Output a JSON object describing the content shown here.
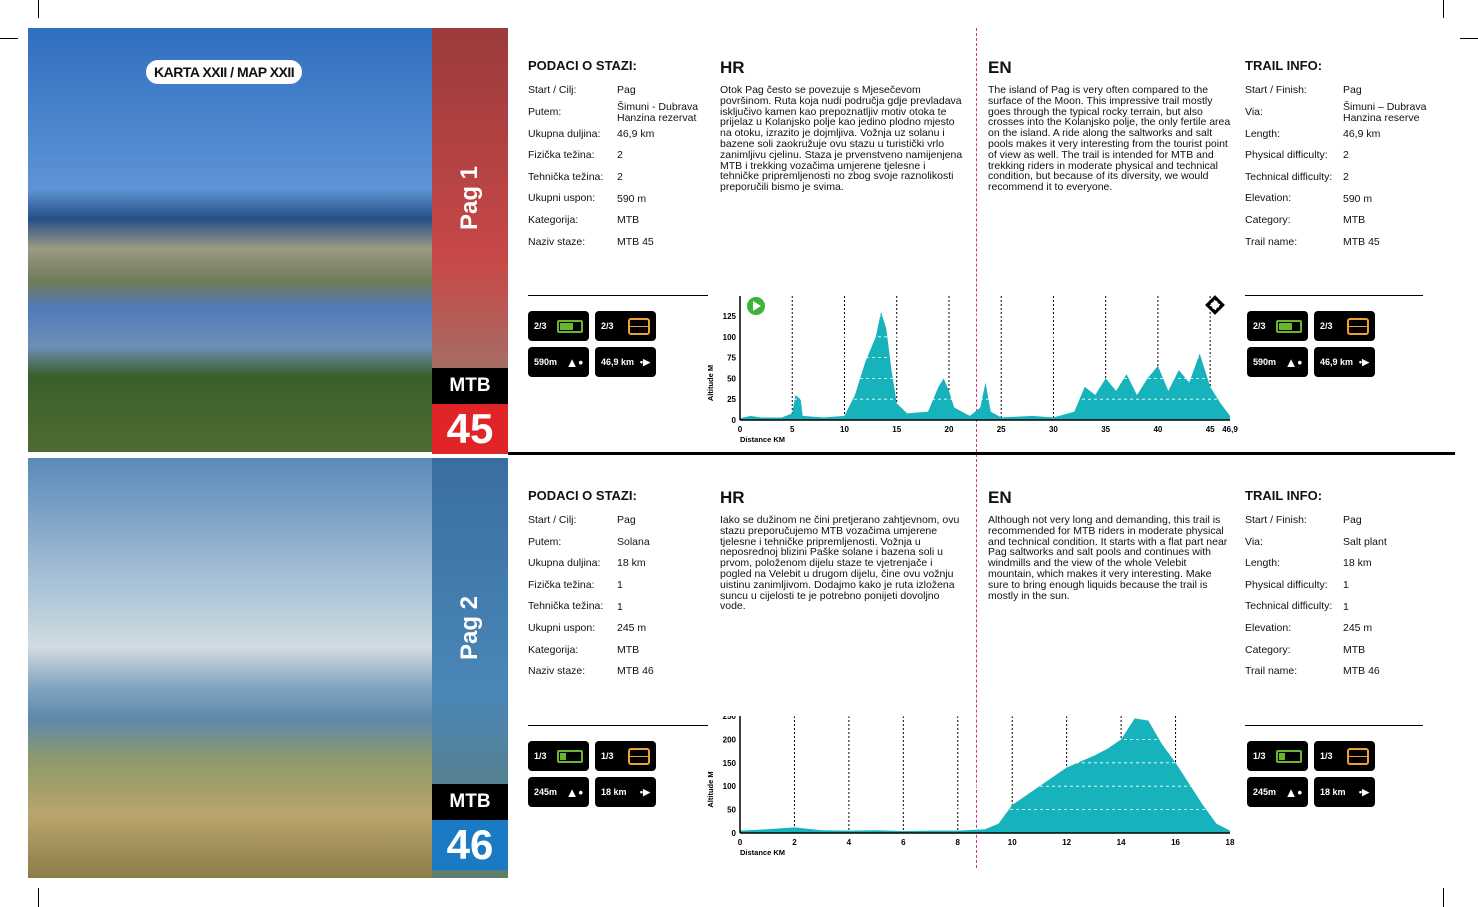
{
  "map_label": "KARTA XXII / MAP XXII",
  "routes": [
    {
      "pag": "Pag 1",
      "type": "MTB",
      "number": "45",
      "num_color": "#e02428",
      "hr_info_title": "PODACI O STAZI:",
      "hr_title": "HR",
      "en_title": "EN",
      "en_info_title": "TRAIL INFO:",
      "hr_info": [
        [
          "Start / Cilj:",
          "Pag"
        ],
        [
          "Putem:",
          "Šimuni - Dubrava Hanzina rezervat"
        ],
        [
          "Ukupna duljina:",
          "46,9 km"
        ],
        [
          "Fizička težina:",
          "2"
        ],
        [
          "Tehnička težina:",
          "2"
        ],
        [
          "Ukupni uspon:",
          "590 m"
        ],
        [
          "Kategorija:",
          "MTB"
        ],
        [
          "Naziv staze:",
          "MTB 45"
        ]
      ],
      "en_info": [
        [
          "Start / Finish:",
          "Pag"
        ],
        [
          "Via:",
          "Šimuni – Dubrava Hanzina reserve"
        ],
        [
          "Length:",
          "46,9 km"
        ],
        [
          "Physical difficulty:",
          "2"
        ],
        [
          "Technical difficulty:",
          "2"
        ],
        [
          "Elevation:",
          "590 m"
        ],
        [
          "Category:",
          "MTB"
        ],
        [
          "Trail name:",
          "MTB 45"
        ]
      ],
      "hr_text": "Otok Pag često se povezuje s Mjesečevom površinom. Ruta koja nudi područja gdje prevladava isključivo kamen kao prepoznatljiv motiv otoka te prijelaz u Kolanjsko polje kao jedino plodno mjesto na otoku, izrazito je dojmljiva. Vožnja uz solanu i bazene soli zaokružuje ovu stazu u turistički vrlo zanimljivu cjelinu. Staza je prvenstveno namijenjena MTB i trekking vozačima umjerene tjelesne i tehničke pripremljenosti no zbog svoje raznolikosti preporučili bismo je svima.",
      "en_text": "The island of Pag is very often compared to the surface of the Moon. This impressive trail mostly goes through the typical rocky terrain, but also crosses into the Kolanjsko polje, the only fertile area on the island. A ride along the saltworks and salt pools makes it very interesting from the tourist point of view as well. The trail is intended for MTB and trekking riders in moderate physical and technical condition, but because of its diversity, we would recommend it to everyone.",
      "badges": {
        "physical": "2/3",
        "physical_fraction": 0.67,
        "technical": "2/3",
        "elevation": "590m",
        "length": "46,9 km"
      }
    },
    {
      "pag": "Pag 2",
      "type": "MTB",
      "number": "46",
      "num_color": "#1a7ac4",
      "hr_info_title": "PODACI O STAZI:",
      "hr_title": "HR",
      "en_title": "EN",
      "en_info_title": "TRAIL INFO:",
      "hr_info": [
        [
          "Start / Cilj:",
          "Pag"
        ],
        [
          "Putem:",
          "Solana"
        ],
        [
          "Ukupna duljina:",
          "18 km"
        ],
        [
          "Fizička težina:",
          "1"
        ],
        [
          "Tehnička težina:",
          "1"
        ],
        [
          "Ukupni uspon:",
          "245 m"
        ],
        [
          "Kategorija:",
          "MTB"
        ],
        [
          "Naziv staze:",
          "MTB 46"
        ]
      ],
      "en_info": [
        [
          "Start / Finish:",
          "Pag"
        ],
        [
          "Via:",
          "Salt plant"
        ],
        [
          "Length:",
          "18 km"
        ],
        [
          "Physical difficulty:",
          "1"
        ],
        [
          "Technical difficulty:",
          "1"
        ],
        [
          "Elevation:",
          "245 m"
        ],
        [
          "Category:",
          "MTB"
        ],
        [
          "Trail name:",
          "MTB 46"
        ]
      ],
      "hr_text": "Iako se dužinom ne čini pretjerano zahtjevnom, ovu stazu preporučujemo MTB vozačima umjerene tjelesne i tehničke pripremljenosti. Vožnja u neposrednoj blizini Paške solane i bazena soli u prvom, položenom dijelu staze te vjetrenjače i pogled na Velebit u drugom dijelu, čine ovu vožnju uistinu zanimljivom. Dodajmo kako je ruta izložena suncu u cijelosti te je potrebno ponijeti dovoljno vode.",
      "en_text": "Although not very long and demanding, this trail is recommended for MTB riders in moderate physical and technical condition. It starts with a flat part near Pag saltworks and salt pools and continues with windmills and the view of the whole Velebit mountain, which makes it very interesting. Make sure to bring enough liquids because the trail is mostly in the sun.",
      "badges": {
        "physical": "1/3",
        "physical_fraction": 0.33,
        "technical": "1/3",
        "elevation": "245m",
        "length": "18 km"
      }
    }
  ],
  "chart_data": [
    {
      "type": "area",
      "xlabel": "Distance KM",
      "ylabel": "Altitude M",
      "xlim": [
        0,
        46.9
      ],
      "ylim": [
        0,
        125
      ],
      "xticks": [
        "0",
        "5",
        "10",
        "15",
        "20",
        "25",
        "30",
        "35",
        "40",
        "45",
        "46,9"
      ],
      "xtick_values": [
        0,
        5,
        10,
        15,
        20,
        25,
        30,
        35,
        40,
        45,
        46.9
      ],
      "yticks": [
        0,
        25,
        50,
        75,
        100,
        125
      ],
      "color": "#16b3bd",
      "x": [
        0,
        1,
        2,
        4,
        5,
        5.3,
        5.8,
        6,
        8,
        10,
        11,
        12,
        13,
        13.5,
        14,
        14.5,
        15,
        16,
        18,
        19,
        19.5,
        20,
        20.5,
        22,
        23,
        23.5,
        24,
        25,
        28,
        30,
        32,
        33,
        34,
        35,
        36,
        37,
        38,
        39,
        40,
        41,
        42,
        43,
        44,
        45,
        46,
        46.9
      ],
      "y": [
        2,
        5,
        3,
        3,
        8,
        30,
        25,
        5,
        3,
        5,
        30,
        70,
        100,
        130,
        110,
        60,
        20,
        8,
        10,
        40,
        50,
        35,
        15,
        5,
        15,
        45,
        10,
        3,
        5,
        3,
        10,
        40,
        30,
        50,
        35,
        55,
        30,
        50,
        65,
        35,
        60,
        45,
        80,
        40,
        20,
        5
      ]
    },
    {
      "type": "area",
      "xlabel": "Distance KM",
      "ylabel": "Altitude M",
      "xlim": [
        0,
        18
      ],
      "ylim": [
        0,
        250
      ],
      "xticks": [
        "0",
        "2",
        "4",
        "6",
        "8",
        "10",
        "12",
        "14",
        "16",
        "18"
      ],
      "xtick_values": [
        0,
        2,
        4,
        6,
        8,
        10,
        12,
        14,
        16,
        18
      ],
      "yticks": [
        0,
        50,
        100,
        150,
        200,
        250
      ],
      "color": "#16b3bd",
      "x": [
        0,
        1,
        2,
        3,
        4,
        5,
        6,
        7,
        8,
        9,
        9.5,
        10,
        11,
        12,
        13,
        13.5,
        14,
        14.5,
        15,
        15.5,
        16,
        17,
        17.5,
        18
      ],
      "y": [
        5,
        8,
        12,
        6,
        5,
        6,
        4,
        5,
        5,
        8,
        20,
        60,
        100,
        140,
        165,
        180,
        200,
        245,
        240,
        190,
        150,
        60,
        20,
        5
      ]
    }
  ]
}
